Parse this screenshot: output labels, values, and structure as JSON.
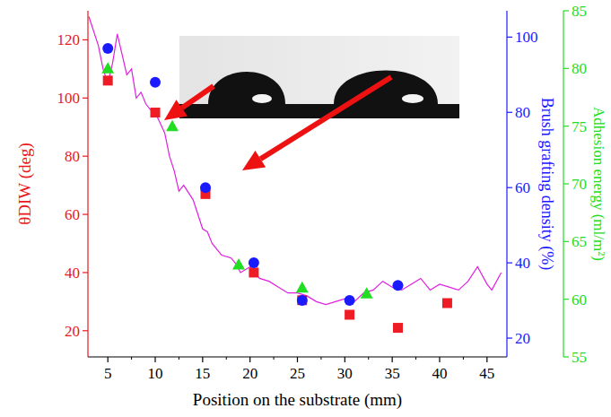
{
  "chart_data": {
    "type": "scatter",
    "x_label": "Position on the substrate  (mm)",
    "y_label": "θDIW  (deg)",
    "y2_label": "Brush grafting density  (%)",
    "y3_label": "Adhesion energy  (ml/m²)",
    "xlim": [
      2.9,
      47.1
    ],
    "xticks": [
      5,
      10,
      15,
      20,
      25,
      30,
      35,
      40,
      45
    ],
    "ylim": [
      11,
      130
    ],
    "yticks": [
      20,
      40,
      60,
      80,
      100,
      120
    ],
    "y2lim": [
      15,
      107
    ],
    "y2ticks": [
      20,
      40,
      60,
      80,
      100
    ],
    "y3lim": [
      55,
      85
    ],
    "y3ticks": [
      55,
      60,
      65,
      70,
      75,
      80,
      85
    ],
    "series": [
      {
        "type": "line",
        "color": "#e020e0",
        "line_style": "solid",
        "x": [
          3,
          4,
          4.5,
          5,
          5.5,
          6,
          6.5,
          7,
          7.5,
          8,
          8.5,
          9,
          9.5,
          10,
          11,
          11.5,
          12,
          12.5,
          13,
          14,
          15,
          15.5,
          16,
          17,
          18,
          18.5,
          19,
          20,
          21,
          22,
          23,
          24,
          25,
          26,
          27,
          28,
          29,
          30,
          31,
          32,
          33,
          34,
          35,
          36,
          37,
          38,
          39,
          40,
          41,
          42,
          43,
          44,
          45,
          45.5,
          46.5
        ],
        "values": [
          128,
          118,
          110,
          105,
          112,
          122,
          115,
          108,
          110,
          100,
          102,
          98,
          96,
          95,
          88,
          80,
          75,
          68,
          70,
          65,
          55,
          54,
          50,
          46,
          45,
          43,
          40,
          42,
          38,
          37,
          35,
          33,
          33,
          32,
          30,
          29,
          30,
          31,
          30,
          33,
          34,
          37,
          35,
          34,
          36,
          38,
          34,
          36,
          35,
          34,
          37,
          42,
          36,
          34,
          40
        ]
      },
      {
        "type": "scatter",
        "marker": "square",
        "color": "#ee1c25",
        "x": [
          5,
          10,
          15.3,
          20.4,
          25.5,
          30.5,
          35.6,
          40.8
        ],
        "values": [
          106,
          95,
          67,
          40,
          30.5,
          25.5,
          21,
          29.5
        ]
      },
      {
        "type": "scatter",
        "marker": "circle",
        "color": "#1a1aff",
        "axis": "y2",
        "x": [
          5,
          10,
          15.3,
          20.4,
          25.5,
          30.5,
          35.6
        ],
        "values": [
          97,
          88,
          60,
          40,
          30,
          30,
          34
        ]
      },
      {
        "type": "scatter",
        "marker": "triangle",
        "color": "#22dd22",
        "axis": "y3",
        "x": [
          5,
          11.8,
          18.8,
          25.5,
          32.3
        ],
        "values": [
          80,
          75,
          63,
          61,
          60.5
        ]
      }
    ]
  }
}
